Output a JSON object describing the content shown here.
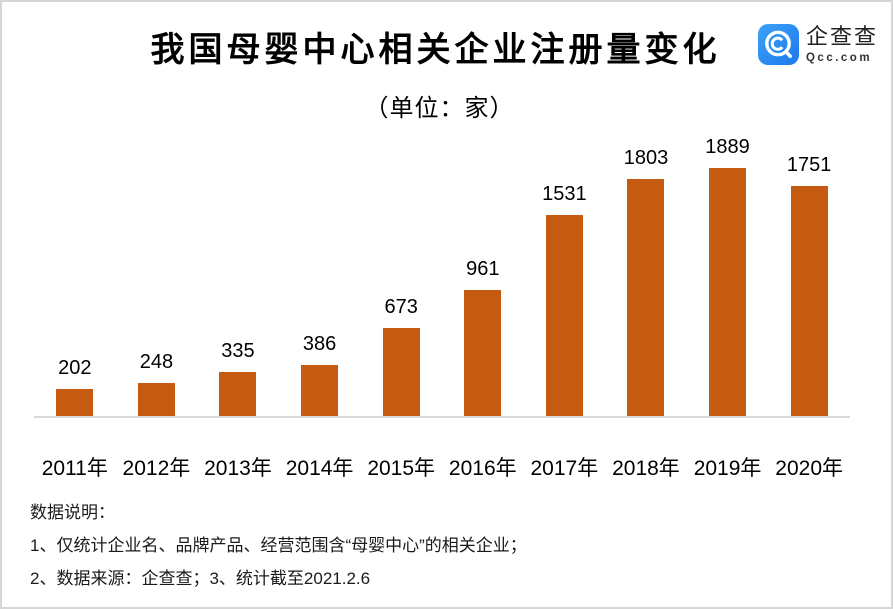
{
  "header": {
    "title": "我国母婴中心相关企业注册量变化",
    "subtitle": "（单位：家）",
    "logo": {
      "name": "企查查",
      "domain": "Qcc.com",
      "icon": "qcc-magnifier-icon",
      "brand_color": "#2285F0"
    }
  },
  "chart_data": {
    "type": "bar",
    "title": "我国母婴中心相关企业注册量变化",
    "subtitle": "（单位：家）",
    "unit": "家",
    "categories": [
      "2011年",
      "2012年",
      "2013年",
      "2014年",
      "2015年",
      "2016年",
      "2017年",
      "2018年",
      "2019年",
      "2020年"
    ],
    "values": [
      202,
      248,
      335,
      386,
      673,
      961,
      1531,
      1803,
      1889,
      1751
    ],
    "bar_color": "#C55A11",
    "axis_line_color": "#D9D9D9",
    "ylim": [
      0,
      2000
    ],
    "grid": false,
    "legend": "none",
    "data_labels": true
  },
  "footer": {
    "heading": "数据说明：",
    "notes": [
      "1、仅统计企业名、品牌产品、经营范围含“母婴中心”的相关企业；",
      "2、数据来源：企查查；3、统计截至2021.2.6"
    ]
  }
}
